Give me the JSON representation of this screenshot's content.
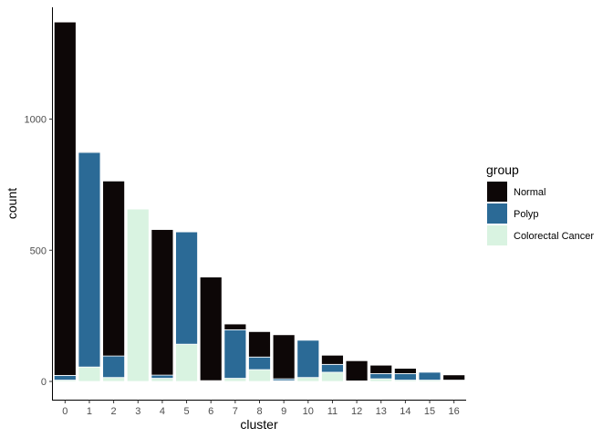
{
  "chart_data": {
    "type": "bar",
    "stacked": true,
    "xlabel": "cluster",
    "ylabel": "count",
    "ylim": [
      0,
      1400
    ],
    "yticks": [
      0,
      500,
      1000
    ],
    "grid": false,
    "legend_position": "right",
    "legend_title": "group",
    "categories": [
      "0",
      "1",
      "2",
      "3",
      "4",
      "5",
      "6",
      "7",
      "8",
      "9",
      "10",
      "11",
      "12",
      "13",
      "14",
      "15",
      "16"
    ],
    "series": [
      {
        "name": "Colorectal Cancer",
        "color": "#d9f3e1",
        "values": [
          5,
          55,
          15,
          657,
          12,
          142,
          2,
          12,
          45,
          3,
          15,
          35,
          1,
          10,
          5,
          5,
          3
        ]
      },
      {
        "name": "Polyp",
        "color": "#2b6a96",
        "values": [
          18,
          818,
          82,
          0,
          12,
          428,
          1,
          185,
          48,
          7,
          142,
          30,
          1,
          20,
          25,
          30,
          2
        ]
      },
      {
        "name": "Normal",
        "color": "#0d0707",
        "values": [
          1347,
          3,
          667,
          0,
          555,
          0,
          395,
          22,
          97,
          168,
          0,
          35,
          77,
          32,
          20,
          0,
          20
        ]
      }
    ],
    "legend_order": [
      "Normal",
      "Polyp",
      "Colorectal Cancer"
    ]
  }
}
